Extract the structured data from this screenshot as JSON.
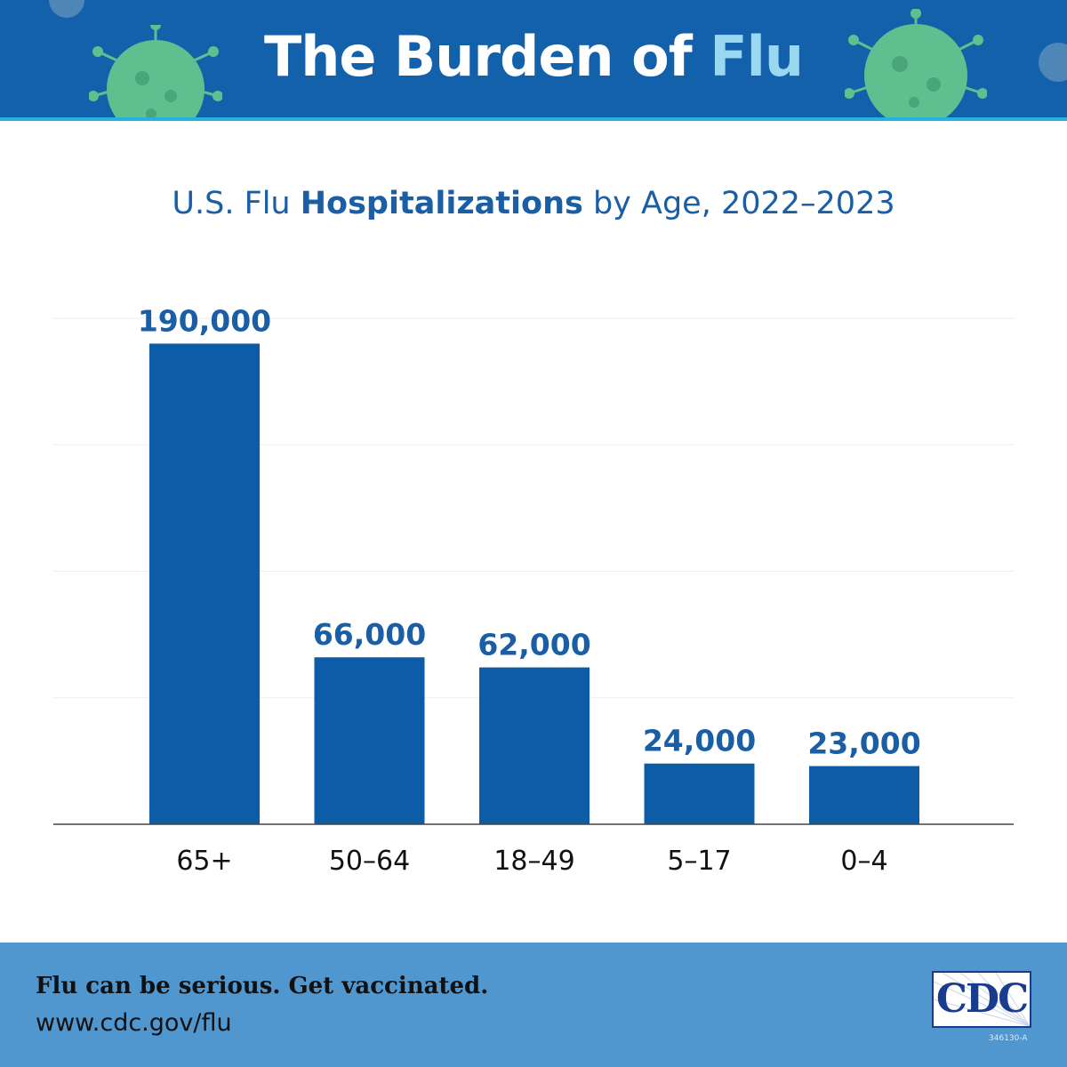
{
  "header": {
    "title_main": "The Burden of",
    "title_accent": "Flu"
  },
  "subtitle": {
    "part1": "U.S. Flu",
    "bold": "Hospitalizations",
    "part2": "by Age, 2022–2023"
  },
  "chart_data": {
    "type": "bar",
    "categories": [
      "65+",
      "50–64",
      "18–49",
      "5–17",
      "0–4"
    ],
    "values": [
      190000,
      66000,
      62000,
      24000,
      23000
    ],
    "value_labels": [
      "190,000",
      "66,000",
      "62,000",
      "24,000",
      "23,000"
    ],
    "title": "U.S. Flu Hospitalizations by Age, 2022–2023",
    "xlabel": "",
    "ylabel": "",
    "ylim": [
      0,
      200000
    ],
    "grid": true,
    "bar_color": "#0c5ca8",
    "label_color": "#1a5ea6"
  },
  "footer": {
    "tagline": "Flu can be serious. Get vaccinated.",
    "url": "www.cdc.gov/flu",
    "logo_text": "CDC",
    "doc_id": "346130-A"
  },
  "colors": {
    "header_bg": "#1360ab",
    "header_accent": "#9ad8f2",
    "footer_bg": "#5096cf",
    "stripe": "#29b1de",
    "virus": "#5fbf8f"
  },
  "icons": [
    "virus-icon",
    "cdc-logo-icon"
  ]
}
